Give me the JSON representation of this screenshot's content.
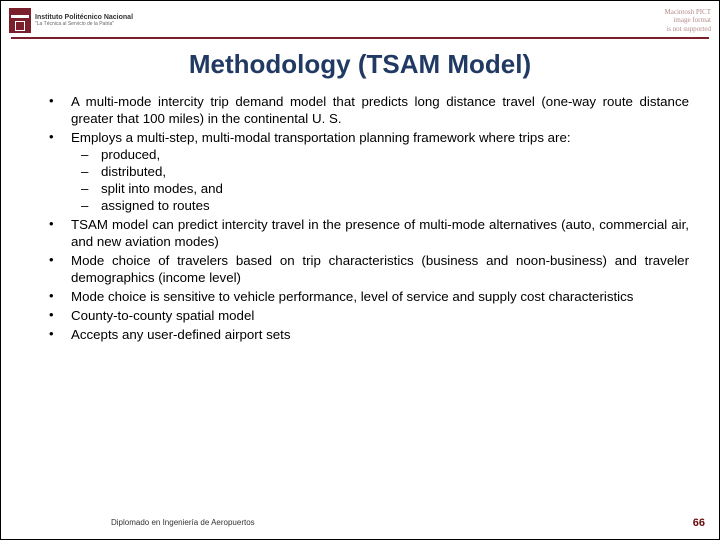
{
  "header": {
    "institution_line1": "Instituto Politécnico Nacional",
    "institution_line2": "\"La Técnica al Servicio de la Patria\"",
    "right_line1": "Macintosh PICT",
    "right_line2": "image format",
    "right_line3": "is not supported"
  },
  "colors": {
    "accent": "#7a1f2b",
    "title": "#213a63",
    "page_num": "#6b0a0a",
    "right_header": "#b58b8b"
  },
  "title": "Methodology (TSAM Model)",
  "bullets": [
    {
      "text": "A multi-mode intercity trip demand model that predicts long distance travel (one-way route distance greater that 100 miles) in the continental U. S."
    },
    {
      "text": "Employs a multi-step, multi-modal transportation planning framework where trips are:",
      "sub": [
        "produced,",
        "distributed,",
        "split into modes, and",
        "assigned to routes"
      ]
    },
    {
      "text": "TSAM model can predict intercity travel in the presence of multi-mode alternatives (auto, commercial air, and new aviation modes)"
    },
    {
      "text": "Mode choice of travelers based on trip characteristics (business and noon-business) and traveler demographics (income level)"
    },
    {
      "text": "Mode choice is sensitive to vehicle performance, level of service and supply cost characteristics"
    },
    {
      "text": "County-to-county spatial model"
    },
    {
      "text": "Accepts any user-defined airport sets"
    }
  ],
  "footer": {
    "left": "Diplomado en Ingeniería de Aeropuertos",
    "page": "66"
  }
}
